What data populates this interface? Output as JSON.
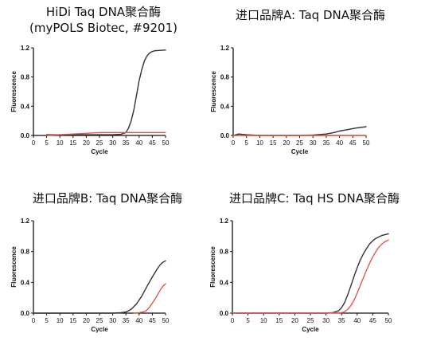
{
  "chart_data": [
    {
      "type": "line",
      "title": "HiDi Taq DNA聚合酶",
      "subtitle": "(myPOLS Biotec, #9201)",
      "xlabel": "Cycle",
      "ylabel": "Fluorescence",
      "xlim": [
        0,
        50
      ],
      "ylim": [
        0,
        1.2
      ],
      "xticks": [
        "0",
        "5",
        "10",
        "15",
        "20",
        "25",
        "30",
        "35",
        "40",
        "45",
        "50"
      ],
      "yticks": [
        "0.0",
        "0.4",
        "0.8",
        "1.2"
      ],
      "grid": false,
      "series": [
        {
          "color": "#333333",
          "points": [
            [
              5,
              0.01
            ],
            [
              10,
              0.01
            ],
            [
              15,
              0.01
            ],
            [
              20,
              0.01
            ],
            [
              25,
              0.01
            ],
            [
              30,
              0.01
            ],
            [
              33,
              0.015
            ],
            [
              35,
              0.04
            ],
            [
              36,
              0.1
            ],
            [
              37,
              0.2
            ],
            [
              38,
              0.35
            ],
            [
              39,
              0.55
            ],
            [
              40,
              0.75
            ],
            [
              41,
              0.9
            ],
            [
              42,
              1.02
            ],
            [
              43,
              1.09
            ],
            [
              44,
              1.13
            ],
            [
              45,
              1.15
            ],
            [
              46,
              1.16
            ],
            [
              48,
              1.165
            ],
            [
              50,
              1.17
            ]
          ]
        },
        {
          "color": "#e05a48",
          "points": [
            [
              5,
              0.0
            ],
            [
              10,
              0.01
            ],
            [
              15,
              0.02
            ],
            [
              20,
              0.03
            ],
            [
              25,
              0.04
            ],
            [
              30,
              0.04
            ],
            [
              35,
              0.04
            ],
            [
              40,
              0.04
            ],
            [
              45,
              0.04
            ],
            [
              50,
              0.04
            ]
          ]
        }
      ]
    },
    {
      "type": "line",
      "title": "进口品牌A: Taq DNA聚合酶",
      "xlabel": "Cycle",
      "ylabel": "Fluorescence",
      "xlim": [
        0,
        50
      ],
      "ylim": [
        0,
        1.2
      ],
      "xticks": [
        "0",
        "5",
        "10",
        "15",
        "20",
        "25",
        "30",
        "35",
        "40",
        "45",
        "50"
      ],
      "yticks": [
        "0.0",
        "0.4",
        "0.8",
        "1.2"
      ],
      "grid": false,
      "series": [
        {
          "color": "#333333",
          "points": [
            [
              0,
              0.0
            ],
            [
              2,
              0.02
            ],
            [
              5,
              0.01
            ],
            [
              10,
              0.0
            ],
            [
              15,
              0.0
            ],
            [
              20,
              0.0
            ],
            [
              25,
              0.0
            ],
            [
              30,
              0.005
            ],
            [
              35,
              0.02
            ],
            [
              38,
              0.04
            ],
            [
              40,
              0.06
            ],
            [
              43,
              0.08
            ],
            [
              46,
              0.1
            ],
            [
              50,
              0.12
            ]
          ]
        },
        {
          "color": "#e05a48",
          "points": [
            [
              0,
              0.0
            ],
            [
              10,
              0.0
            ],
            [
              20,
              0.0
            ],
            [
              30,
              0.0
            ],
            [
              40,
              0.0
            ],
            [
              50,
              0.0
            ]
          ]
        }
      ]
    },
    {
      "type": "line",
      "title": "进口品牌B: Taq DNA聚合酶",
      "xlabel": "Cycle",
      "ylabel": "Fluorescence",
      "xlim": [
        0,
        50
      ],
      "ylim": [
        0,
        1.2
      ],
      "xticks": [
        "0",
        "5",
        "10",
        "15",
        "20",
        "25",
        "30",
        "35",
        "40",
        "45",
        "50"
      ],
      "yticks": [
        "0.0",
        "0.4",
        "0.8",
        "1.2"
      ],
      "grid": false,
      "series": [
        {
          "color": "#333333",
          "points": [
            [
              0,
              0.0
            ],
            [
              5,
              0.0
            ],
            [
              10,
              0.0
            ],
            [
              15,
              0.0
            ],
            [
              20,
              0.0
            ],
            [
              25,
              0.0
            ],
            [
              30,
              0.0
            ],
            [
              33,
              0.005
            ],
            [
              35,
              0.015
            ],
            [
              37,
              0.05
            ],
            [
              39,
              0.12
            ],
            [
              41,
              0.22
            ],
            [
              43,
              0.35
            ],
            [
              45,
              0.47
            ],
            [
              47,
              0.58
            ],
            [
              48,
              0.63
            ],
            [
              49,
              0.66
            ],
            [
              50,
              0.68
            ]
          ]
        },
        {
          "color": "#e05a48",
          "points": [
            [
              38,
              0.0
            ],
            [
              40,
              0.005
            ],
            [
              42,
              0.02
            ],
            [
              43,
              0.04
            ],
            [
              44,
              0.08
            ],
            [
              45,
              0.13
            ],
            [
              46,
              0.18
            ],
            [
              47,
              0.24
            ],
            [
              48,
              0.3
            ],
            [
              49,
              0.35
            ],
            [
              50,
              0.38
            ]
          ]
        }
      ]
    },
    {
      "type": "line",
      "title": "进口品牌C: Taq HS DNA聚合酶",
      "xlabel": "Cycle",
      "ylabel": "Fluorescence",
      "xlim": [
        0,
        50
      ],
      "ylim": [
        0,
        1.2
      ],
      "xticks": [
        "0",
        "5",
        "10",
        "15",
        "20",
        "25",
        "30",
        "35",
        "40",
        "45",
        "50"
      ],
      "yticks": [
        "0.0",
        "0.4",
        "0.8",
        "1.2"
      ],
      "grid": false,
      "series": [
        {
          "color": "#333333",
          "points": [
            [
              0,
              0.0
            ],
            [
              10,
              0.0
            ],
            [
              20,
              0.0
            ],
            [
              30,
              0.0
            ],
            [
              32,
              0.005
            ],
            [
              34,
              0.03
            ],
            [
              35,
              0.07
            ],
            [
              36,
              0.14
            ],
            [
              37,
              0.24
            ],
            [
              38,
              0.36
            ],
            [
              39,
              0.48
            ],
            [
              40,
              0.59
            ],
            [
              41,
              0.69
            ],
            [
              42,
              0.77
            ],
            [
              43,
              0.84
            ],
            [
              44,
              0.9
            ],
            [
              45,
              0.94
            ],
            [
              46,
              0.97
            ],
            [
              47,
              0.99
            ],
            [
              48,
              1.01
            ],
            [
              50,
              1.03
            ]
          ]
        },
        {
          "color": "#e05a48",
          "points": [
            [
              0,
              0.0
            ],
            [
              10,
              0.0
            ],
            [
              20,
              0.0
            ],
            [
              30,
              0.0
            ],
            [
              35,
              0.005
            ],
            [
              36,
              0.02
            ],
            [
              37,
              0.05
            ],
            [
              38,
              0.1
            ],
            [
              39,
              0.17
            ],
            [
              40,
              0.26
            ],
            [
              41,
              0.36
            ],
            [
              42,
              0.46
            ],
            [
              43,
              0.56
            ],
            [
              44,
              0.65
            ],
            [
              45,
              0.73
            ],
            [
              46,
              0.8
            ],
            [
              47,
              0.86
            ],
            [
              48,
              0.9
            ],
            [
              49,
              0.93
            ],
            [
              50,
              0.95
            ]
          ]
        }
      ]
    }
  ]
}
